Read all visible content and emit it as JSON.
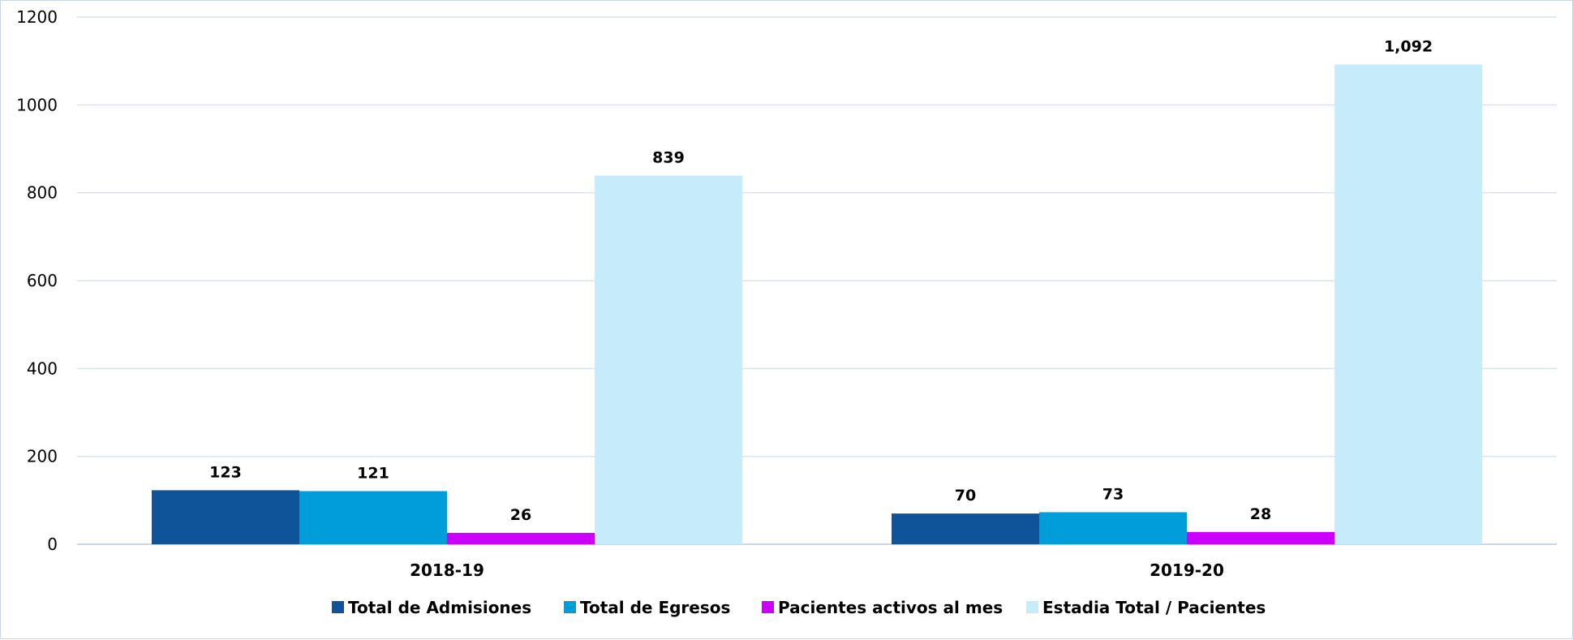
{
  "chart_data": {
    "type": "bar",
    "categories": [
      "2018-19",
      "2019-20"
    ],
    "series": [
      {
        "name": "Total de Admisiones",
        "values": [
          123,
          70
        ],
        "labels": [
          "123",
          "70"
        ],
        "color": "#0f5499"
      },
      {
        "name": "Total de Egresos",
        "values": [
          121,
          73
        ],
        "labels": [
          "121",
          "73"
        ],
        "color": "#009ddb"
      },
      {
        "name": "Pacientes activos al mes",
        "values": [
          26,
          28
        ],
        "labels": [
          "26",
          "28"
        ],
        "color": "#cc00ff"
      },
      {
        "name": "Estadia Total / Pacientes",
        "values": [
          839,
          1092
        ],
        "labels": [
          "839",
          "1,092"
        ],
        "color": "#c6ecfb"
      }
    ],
    "yticks": [
      0,
      200,
      400,
      600,
      800,
      1000,
      1200
    ],
    "ylim": [
      0,
      1200
    ],
    "grid": true,
    "legend_position": "bottom",
    "grid_color": "#d6e3f3"
  }
}
